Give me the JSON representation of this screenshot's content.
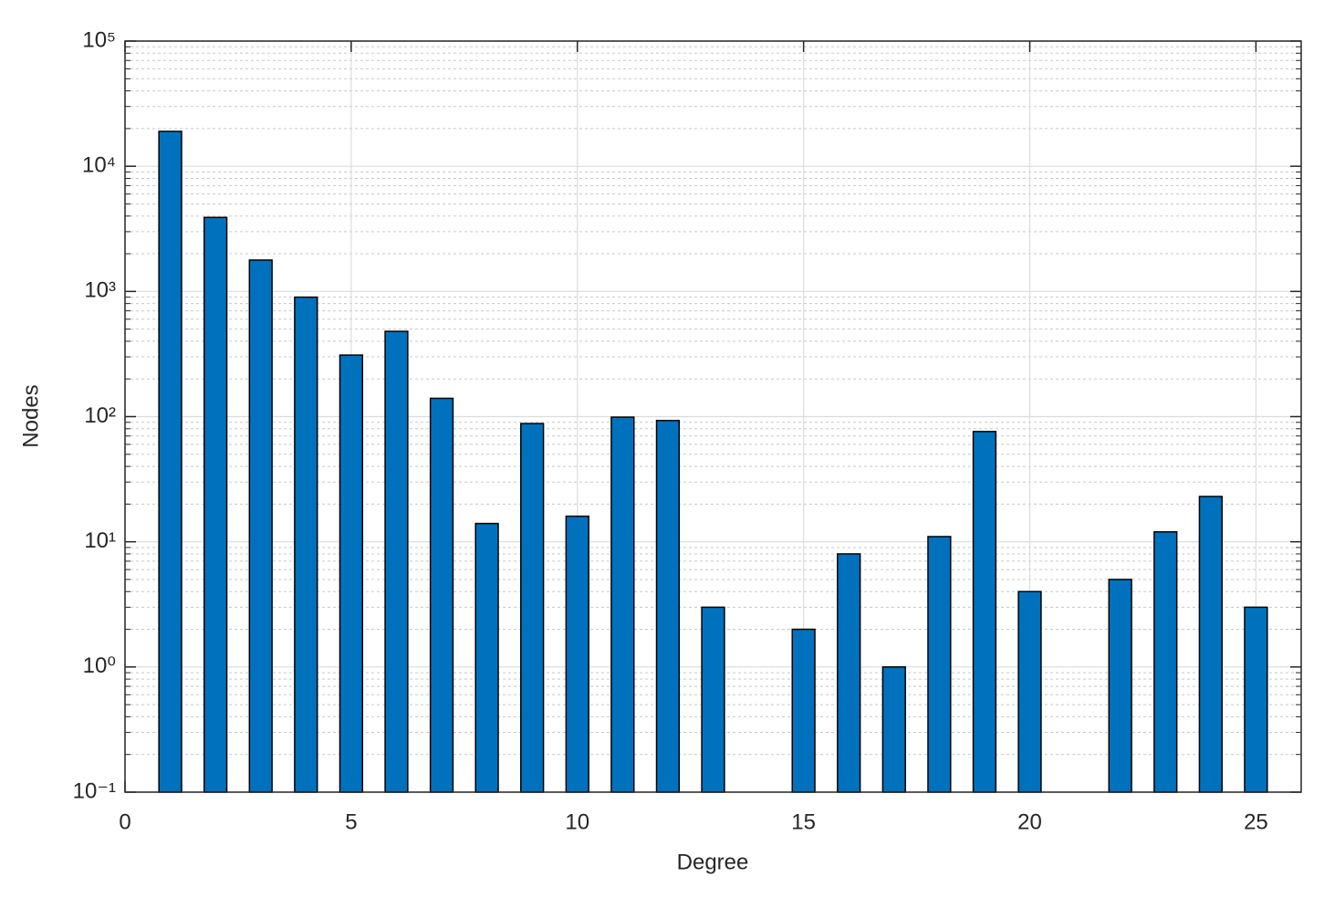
{
  "chart_data": {
    "type": "bar",
    "x_label": "Degree",
    "y_label": "Nodes",
    "x": [
      1,
      2,
      3,
      4,
      5,
      6,
      7,
      8,
      9,
      10,
      11,
      12,
      13,
      14,
      15,
      16,
      17,
      18,
      19,
      20,
      21,
      22,
      23,
      24,
      25
    ],
    "values": [
      19000,
      3900,
      1780,
      900,
      310,
      480,
      140,
      14,
      88,
      16,
      99,
      93,
      3,
      null,
      2,
      8,
      1,
      11,
      76,
      4,
      null,
      5,
      12,
      23,
      3
    ],
    "color": "#0072bd",
    "xlim": [
      0,
      26
    ],
    "xticks": [
      0,
      5,
      10,
      15,
      20,
      25
    ],
    "ylim": [
      0.1,
      100000
    ],
    "ylog": true,
    "yticks": [
      {
        "value": 0.1,
        "label": "10⁻¹"
      },
      {
        "value": 1,
        "label": "10⁰"
      },
      {
        "value": 10,
        "label": "10¹"
      },
      {
        "value": 100,
        "label": "10²"
      },
      {
        "value": 1000,
        "label": "10³"
      },
      {
        "value": 10000,
        "label": "10⁴"
      },
      {
        "value": 100000,
        "label": "10⁵"
      }
    ],
    "grid": true,
    "minor_grid": true
  }
}
